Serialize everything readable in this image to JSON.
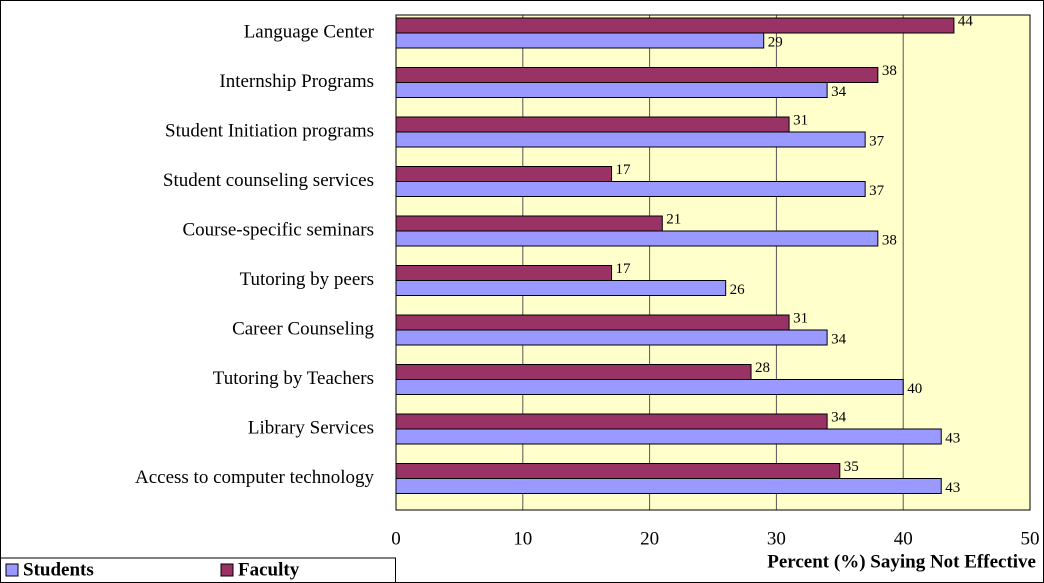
{
  "chart_data": {
    "type": "bar",
    "orientation": "horizontal",
    "categories": [
      "Language Center",
      "Internship Programs",
      "Student Initiation programs",
      "Student counseling services",
      "Course-specific seminars",
      "Tutoring by peers",
      "Career Counseling",
      "Tutoring by Teachers",
      "Library Services",
      "Access to computer technology"
    ],
    "series": [
      {
        "name": "Students",
        "color": "#9999ff",
        "values": [
          29,
          34,
          37,
          37,
          38,
          26,
          34,
          40,
          43,
          43
        ]
      },
      {
        "name": "Faculty",
        "color": "#993366",
        "values": [
          44,
          38,
          31,
          17,
          21,
          17,
          31,
          28,
          34,
          35
        ]
      }
    ],
    "xlim": [
      0,
      50
    ],
    "xticks": [
      0,
      10,
      20,
      30,
      40,
      50
    ],
    "xlabel": "Percent (%) Saying Not Effective",
    "grid": true,
    "legend": "bottom-left",
    "plot_background": "#ffffcc"
  }
}
